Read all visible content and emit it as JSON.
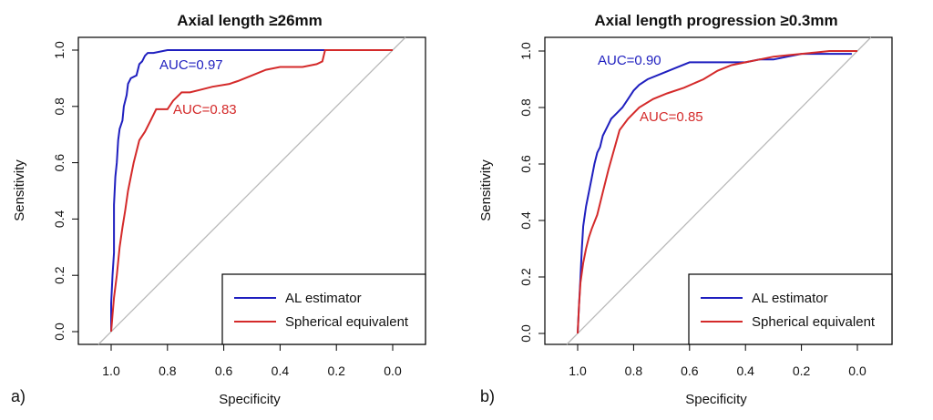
{
  "chart_data": [
    {
      "type": "line",
      "panel_label": "a)",
      "title": "Axial length ≥26mm",
      "xlabel": "Specificity",
      "ylabel": "Sensitivity",
      "xlim": [
        1.0,
        0.0
      ],
      "ylim": [
        0.0,
        1.0
      ],
      "x_reversed": true,
      "x_ticks": [
        "1.0",
        "0.8",
        "0.6",
        "0.4",
        "0.2",
        "0.0"
      ],
      "y_ticks": [
        "0.0",
        "0.2",
        "0.4",
        "0.6",
        "0.8",
        "1.0"
      ],
      "grid": false,
      "legend_position": "bottom-right",
      "series": [
        {
          "name": "AL estimator",
          "color": "#1f1fbf",
          "auc_label": "AUC=0.97",
          "x": [
            1.0,
            1.0,
            0.995,
            0.99,
            0.99,
            0.985,
            0.98,
            0.975,
            0.97,
            0.96,
            0.955,
            0.945,
            0.94,
            0.93,
            0.91,
            0.9,
            0.89,
            0.88,
            0.87,
            0.85,
            0.8,
            0.6,
            0.4,
            0.25,
            0.24,
            0.0
          ],
          "y": [
            0.0,
            0.1,
            0.2,
            0.28,
            0.45,
            0.55,
            0.6,
            0.68,
            0.72,
            0.75,
            0.8,
            0.84,
            0.88,
            0.9,
            0.91,
            0.95,
            0.96,
            0.98,
            0.99,
            0.99,
            1.0,
            1.0,
            1.0,
            1.0,
            1.0,
            1.0
          ]
        },
        {
          "name": "Spherical equivalent",
          "color": "#d42a2a",
          "auc_label": "AUC=0.83",
          "x": [
            1.0,
            0.995,
            0.99,
            0.98,
            0.97,
            0.96,
            0.95,
            0.94,
            0.93,
            0.92,
            0.91,
            0.9,
            0.88,
            0.86,
            0.84,
            0.8,
            0.78,
            0.75,
            0.72,
            0.68,
            0.64,
            0.58,
            0.55,
            0.5,
            0.45,
            0.4,
            0.32,
            0.27,
            0.25,
            0.24,
            0.0
          ],
          "y": [
            0.0,
            0.06,
            0.12,
            0.2,
            0.3,
            0.37,
            0.43,
            0.5,
            0.55,
            0.6,
            0.64,
            0.68,
            0.71,
            0.75,
            0.79,
            0.79,
            0.82,
            0.85,
            0.85,
            0.86,
            0.87,
            0.88,
            0.89,
            0.91,
            0.93,
            0.94,
            0.94,
            0.95,
            0.96,
            1.0,
            1.0
          ]
        }
      ]
    },
    {
      "type": "line",
      "panel_label": "b)",
      "title": "Axial length progression ≥0.3mm",
      "xlabel": "Specificity",
      "ylabel": "Sensitivity",
      "xlim": [
        1.0,
        0.0
      ],
      "ylim": [
        0.0,
        1.0
      ],
      "x_reversed": true,
      "x_ticks": [
        "1.0",
        "0.8",
        "0.6",
        "0.4",
        "0.2",
        "0.0"
      ],
      "y_ticks": [
        "0.0",
        "0.2",
        "0.4",
        "0.6",
        "0.8",
        "1.0"
      ],
      "grid": false,
      "legend_position": "bottom-right",
      "series": [
        {
          "name": "AL estimator",
          "color": "#1f1fbf",
          "auc_label": "AUC=0.90",
          "x": [
            1.0,
            0.995,
            0.99,
            0.985,
            0.98,
            0.97,
            0.96,
            0.95,
            0.94,
            0.93,
            0.92,
            0.91,
            0.9,
            0.89,
            0.88,
            0.86,
            0.84,
            0.82,
            0.8,
            0.78,
            0.75,
            0.7,
            0.65,
            0.6,
            0.5,
            0.4,
            0.35,
            0.3,
            0.25,
            0.2,
            0.1,
            0.02
          ],
          "y": [
            0.0,
            0.1,
            0.2,
            0.3,
            0.38,
            0.45,
            0.5,
            0.55,
            0.6,
            0.64,
            0.66,
            0.7,
            0.72,
            0.74,
            0.76,
            0.78,
            0.8,
            0.83,
            0.86,
            0.88,
            0.9,
            0.92,
            0.94,
            0.96,
            0.96,
            0.96,
            0.97,
            0.97,
            0.98,
            0.99,
            0.99,
            0.99
          ]
        },
        {
          "name": "Spherical equivalent",
          "color": "#d42a2a",
          "auc_label": "AUC=0.85",
          "x": [
            1.0,
            0.995,
            0.99,
            0.98,
            0.97,
            0.96,
            0.95,
            0.93,
            0.91,
            0.89,
            0.87,
            0.85,
            0.82,
            0.78,
            0.73,
            0.68,
            0.62,
            0.55,
            0.5,
            0.45,
            0.4,
            0.35,
            0.3,
            0.25,
            0.2,
            0.15,
            0.1,
            0.05,
            0.0
          ],
          "y": [
            0.0,
            0.1,
            0.18,
            0.25,
            0.3,
            0.34,
            0.37,
            0.42,
            0.5,
            0.58,
            0.65,
            0.72,
            0.76,
            0.8,
            0.83,
            0.85,
            0.87,
            0.9,
            0.93,
            0.95,
            0.96,
            0.97,
            0.98,
            0.985,
            0.99,
            0.995,
            1.0,
            1.0,
            1.0
          ]
        }
      ]
    }
  ]
}
